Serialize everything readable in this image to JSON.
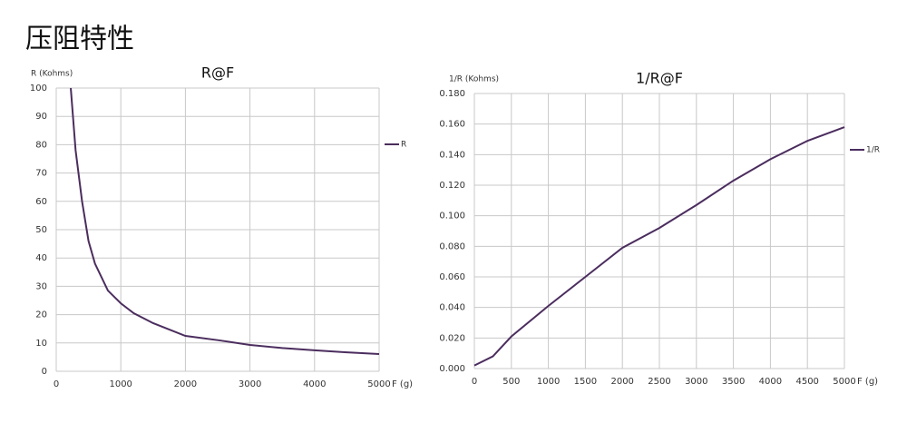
{
  "title": "压阻特性",
  "chart_data": [
    {
      "type": "line",
      "title": "R@F",
      "y_label": "R (Kohms)",
      "x_label": "F (g)",
      "x": [
        225,
        300,
        400,
        500,
        600,
        800,
        1000,
        1200,
        1500,
        2000,
        2500,
        3000,
        3500,
        4000,
        4500,
        5000
      ],
      "series": [
        {
          "name": "R",
          "color": "#4b2d5e",
          "values": [
            100,
            78,
            60,
            46,
            38,
            28.5,
            24,
            20.5,
            17,
            12.5,
            11,
            9.3,
            8.2,
            7.4,
            6.7,
            6.1
          ]
        }
      ],
      "xlim": [
        0,
        5000
      ],
      "xticks": [
        0,
        1000,
        2000,
        3000,
        4000,
        5000
      ],
      "ylim": [
        0,
        100
      ],
      "yticks": [
        0,
        10,
        20,
        30,
        40,
        50,
        60,
        70,
        80,
        90,
        100
      ],
      "grid": true,
      "legend": "right"
    },
    {
      "type": "line",
      "title": "1/R@F",
      "y_label": "1/R (Kohms)",
      "x_label": "F (g)",
      "x": [
        0,
        250,
        500,
        1000,
        1500,
        2000,
        2500,
        3000,
        3500,
        4000,
        4500,
        5000
      ],
      "series": [
        {
          "name": "1/R",
          "color": "#4b2d5e",
          "values": [
            0.002,
            0.008,
            0.021,
            0.041,
            0.06,
            0.079,
            0.092,
            0.107,
            0.123,
            0.137,
            0.149,
            0.158
          ]
        }
      ],
      "xlim": [
        0,
        5000
      ],
      "xticks": [
        0,
        500,
        1000,
        1500,
        2000,
        2500,
        3000,
        3500,
        4000,
        4500,
        5000
      ],
      "ylim": [
        0,
        0.18
      ],
      "yticks": [
        {
          "value": 0,
          "label": "0.000"
        },
        {
          "value": 0.02,
          "label": "0.020"
        },
        {
          "value": 0.04,
          "label": "0.040"
        },
        {
          "value": 0.06,
          "label": "0.060"
        },
        {
          "value": 0.08,
          "label": "0.080"
        },
        {
          "value": 0.1,
          "label": "0.100"
        },
        {
          "value": 0.12,
          "label": "0.120"
        },
        {
          "value": 0.14,
          "label": "0.140"
        },
        {
          "value": 0.16,
          "label": "0.160"
        },
        {
          "value": 0.18,
          "label": "0.180"
        }
      ],
      "grid": true,
      "legend": "right"
    }
  ]
}
